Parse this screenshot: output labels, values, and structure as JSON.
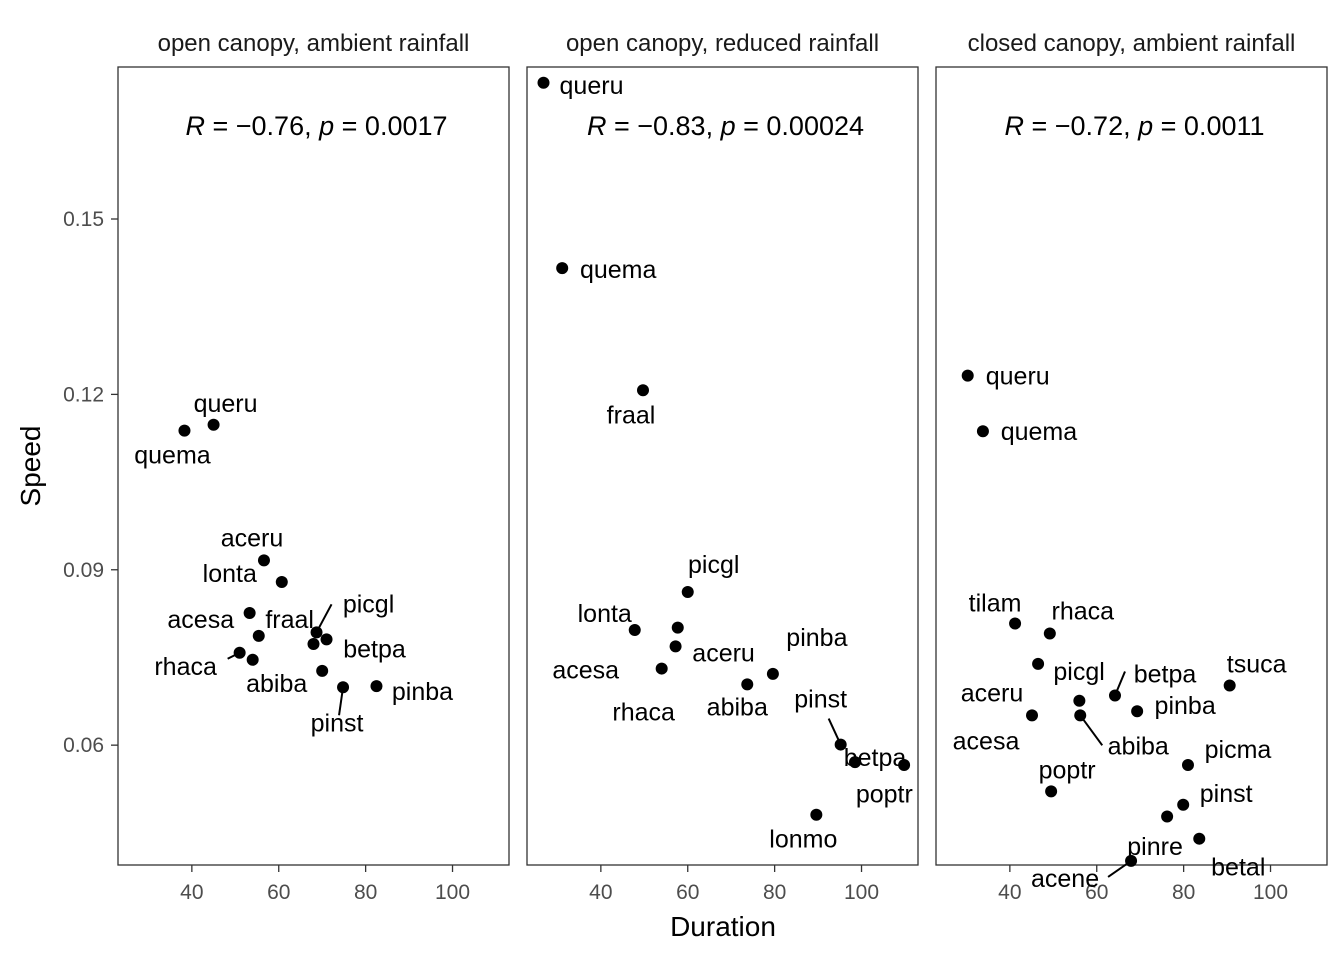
{
  "chart_data": {
    "type": "scatter",
    "xlabel": "Duration",
    "ylabel": "Speed",
    "xlim": [
      23,
      113
    ],
    "ylim": [
      0.0395,
      0.176
    ],
    "x_ticks": [
      "40",
      "60",
      "80",
      "100"
    ],
    "y_ticks": [
      "0.06",
      "0.09",
      "0.12",
      "0.15"
    ],
    "grid": false,
    "panels": [
      {
        "title": "open canopy, ambient rainfall",
        "stats": {
          "r": "−0.76",
          "p": "0.0017"
        },
        "points": [
          {
            "label": "queru",
            "x": 45,
            "y": 0.1148
          },
          {
            "label": "quema",
            "x": 38.3,
            "y": 0.1138
          },
          {
            "label": "aceru",
            "x": 56.6,
            "y": 0.0916
          },
          {
            "label": "lonta",
            "x": 60.7,
            "y": 0.0879
          },
          {
            "label": "fraal",
            "x": 53.3,
            "y": 0.0826
          },
          {
            "label": "acesa",
            "x": 55.4,
            "y": 0.0787
          },
          {
            "label": "rhaca",
            "x": 51,
            "y": 0.0758
          },
          {
            "label": "abiba",
            "x": 54,
            "y": 0.0746
          },
          {
            "label": "picgl",
            "x": 68.7,
            "y": 0.0793
          },
          {
            "label": "betpa",
            "x": 71,
            "y": 0.0781
          },
          {
            "label": "",
            "x": 68,
            "y": 0.0773
          },
          {
            "label": "",
            "x": 70,
            "y": 0.0727
          },
          {
            "label": "pinst",
            "x": 74.8,
            "y": 0.0699
          },
          {
            "label": "pinba",
            "x": 82.5,
            "y": 0.0701
          }
        ]
      },
      {
        "title": "open canopy, reduced rainfall",
        "stats": {
          "r": "−0.83",
          "p": "0.00024"
        },
        "points": [
          {
            "label": "queru",
            "x": 26.8,
            "y": 0.1733
          },
          {
            "label": "quema",
            "x": 31.1,
            "y": 0.1416
          },
          {
            "label": "fraal",
            "x": 49.7,
            "y": 0.1207
          },
          {
            "label": "picgl",
            "x": 60,
            "y": 0.0862
          },
          {
            "label": "lonta",
            "x": 47.8,
            "y": 0.0797
          },
          {
            "label": "",
            "x": 57.7,
            "y": 0.0801
          },
          {
            "label": "aceru",
            "x": 57.2,
            "y": 0.0769
          },
          {
            "label": "acesa",
            "x": 54,
            "y": 0.0731
          },
          {
            "label": "rhaca",
            "x": 54,
            "y": 0.0731
          },
          {
            "label": "abiba",
            "x": 73.7,
            "y": 0.0704
          },
          {
            "label": "pinba",
            "x": 79.6,
            "y": 0.0722
          },
          {
            "label": "pinst",
            "x": 95.2,
            "y": 0.0601
          },
          {
            "label": "betpa",
            "x": 98.5,
            "y": 0.0571
          },
          {
            "label": "",
            "x": 109.8,
            "y": 0.0566
          },
          {
            "label": "poptr",
            "x": 89.6,
            "y": 0.0481
          },
          {
            "label": "lonmo",
            "x": 89.6,
            "y": 0.0481
          }
        ]
      },
      {
        "title": "closed canopy, ambient rainfall",
        "stats": {
          "r": "−0.72",
          "p": "0.0011"
        },
        "points": [
          {
            "label": "queru",
            "x": 30.3,
            "y": 0.1232
          },
          {
            "label": "quema",
            "x": 33.8,
            "y": 0.1137
          },
          {
            "label": "tilam",
            "x": 41.2,
            "y": 0.0808
          },
          {
            "label": "rhaca",
            "x": 49.2,
            "y": 0.0791
          },
          {
            "label": "picgl",
            "x": 46.5,
            "y": 0.0739
          },
          {
            "label": "betpa",
            "x": 64.2,
            "y": 0.0685
          },
          {
            "label": "tsuca",
            "x": 90.6,
            "y": 0.0702
          },
          {
            "label": "aceru",
            "x": 45.1,
            "y": 0.0651
          },
          {
            "label": "",
            "x": 56,
            "y": 0.0676
          },
          {
            "label": "abiba",
            "x": 56.2,
            "y": 0.0651
          },
          {
            "label": "pinba",
            "x": 69.3,
            "y": 0.0658
          },
          {
            "label": "acesa",
            "x": 45.1,
            "y": 0.0651
          },
          {
            "label": "poptr",
            "x": 49.5,
            "y": 0.0521
          },
          {
            "label": "picma",
            "x": 81,
            "y": 0.0566
          },
          {
            "label": "pinst",
            "x": 79.9,
            "y": 0.0498
          },
          {
            "label": "",
            "x": 76.2,
            "y": 0.0478
          },
          {
            "label": "betal",
            "x": 83.6,
            "y": 0.044
          },
          {
            "label": "pinre",
            "x": 67.9,
            "y": 0.0402
          },
          {
            "label": "acene",
            "x": 67.9,
            "y": 0.0402
          }
        ]
      }
    ]
  }
}
